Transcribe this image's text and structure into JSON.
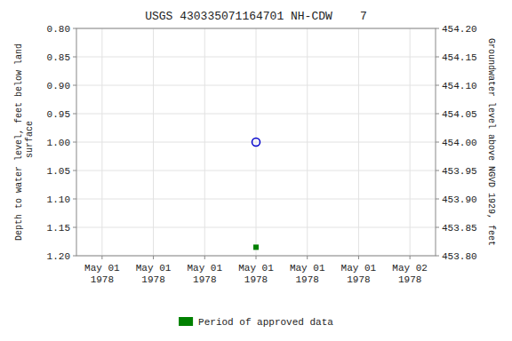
{
  "chart_data": {
    "type": "scatter",
    "title": "USGS 430335071164701 NH-CDW    7",
    "categories": [
      "May 01\n1978",
      "May 01\n1978",
      "May 01\n1978",
      "May 01\n1978",
      "May 01\n1978",
      "May 01\n1978",
      "May 02\n1978"
    ],
    "series": [
      {
        "values": [
          null,
          null,
          null,
          1.0,
          null,
          null,
          null
        ],
        "color": "#0000cc",
        "marker": "circle"
      },
      {
        "name": "Period of approved data",
        "values": [
          null,
          null,
          null,
          1.185,
          null,
          null,
          null
        ],
        "color": "#008000",
        "marker": "square"
      }
    ],
    "ylim": [
      1.2,
      0.8
    ],
    "yticks": [
      {
        "value": 0.8,
        "label": "0.80"
      },
      0.85,
      {
        "value": 0.9,
        "label": "0.90"
      },
      0.95,
      {
        "value": 1.0,
        "label": "1.00"
      },
      1.05,
      {
        "value": 1.1,
        "label": "1.10"
      },
      1.15,
      {
        "value": 1.2,
        "label": "1.20"
      }
    ],
    "y2lim": [
      453.8,
      454.2
    ],
    "y2ticks": [
      {
        "value": 453.8,
        "label": "453.80"
      },
      453.85,
      {
        "value": 453.9,
        "label": "453.90"
      },
      453.95,
      {
        "value": 454.0,
        "label": "454.00"
      },
      454.05,
      {
        "value": 454.1,
        "label": "454.10"
      },
      454.15,
      {
        "value": 454.2,
        "label": "454.20"
      }
    ],
    "y_label": "Depth to water level, feet below land\n surface",
    "y2_label": "Groundwater level above NGVD 1929, feet",
    "grid": true,
    "legend": "bottom"
  }
}
